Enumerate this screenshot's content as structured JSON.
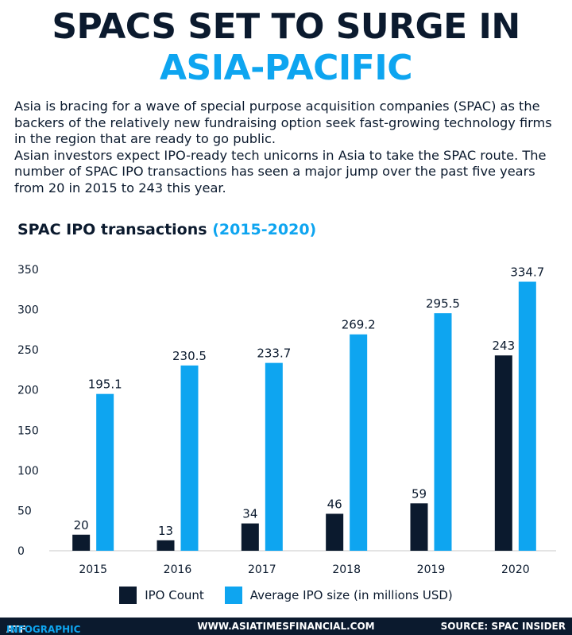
{
  "header": {
    "title_line1": "SPACS SET TO SURGE IN",
    "title_line2": "ASIA-PACIFIC"
  },
  "intro": {
    "paragraph1": "Asia is bracing for a wave of special purpose acquisition companies (SPAC) as the backers of the relatively new fundraising option seek fast-growing technology firms in the region that are ready to go public.",
    "paragraph2": "Asian investors expect IPO-ready tech unicorns in Asia to take the SPAC route. The number of SPAC IPO transactions has seen a major jump over the past five years from 20 in 2015 to 243 this year."
  },
  "chart_header": {
    "main": "SPAC IPO transactions",
    "years": "(2015-2020)"
  },
  "colors": {
    "navy": "#0b1a2e",
    "blue": "#0ea5f0",
    "axis": "#c8c8c8"
  },
  "chart_data": {
    "type": "bar",
    "title": "SPAC IPO transactions (2015-2020)",
    "categories": [
      "2015",
      "2016",
      "2017",
      "2018",
      "2019",
      "2020"
    ],
    "series": [
      {
        "name": "IPO Count",
        "values": [
          20,
          13,
          34,
          46,
          59,
          243
        ],
        "labels": [
          "20",
          "13",
          "34",
          "46",
          "59",
          "243"
        ]
      },
      {
        "name": "Average IPO size (in millions USD)",
        "values": [
          195.1,
          230.5,
          233.7,
          269.2,
          295.5,
          334.7
        ],
        "labels": [
          "195.1",
          "230.5",
          "233.7",
          "269.2",
          "295.5",
          "334.7"
        ]
      }
    ],
    "ylim": [
      0,
      350
    ],
    "yticks": [
      "0",
      "50",
      "100",
      "150",
      "200",
      "250",
      "300",
      "350"
    ],
    "ytick_values": [
      0,
      50,
      100,
      150,
      200,
      250,
      300,
      350
    ],
    "xlabel": "",
    "ylabel": "",
    "grid": false,
    "legend": "bottom"
  },
  "footer": {
    "brand_prefix": "ATF",
    "brand_highlight": "INFOGRAPHIC",
    "website": "WWW.ASIATIMESFINANCIAL.COM",
    "source": "SOURCE: SPAC INSIDER"
  }
}
